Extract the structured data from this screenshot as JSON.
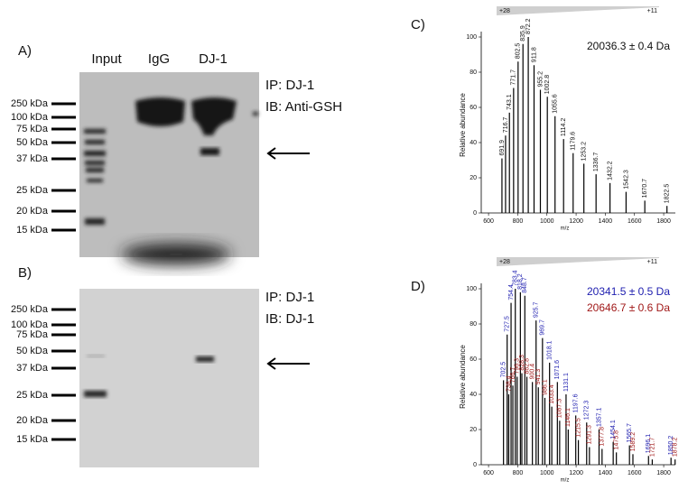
{
  "figure": {
    "blots": [
      {
        "panel": "A)",
        "lanes": [
          "Input",
          "IgG",
          "DJ-1"
        ],
        "markers": [
          "250 kDa",
          "100 kDa",
          "75 kDa",
          "50 kDa",
          "37 kDa",
          "25 kDa",
          "20 kDa",
          "15 kDa"
        ],
        "labels": [
          "IP: DJ-1",
          "IB: Anti-GSH"
        ]
      },
      {
        "panel": "B)",
        "markers": [
          "250 kDa",
          "100 kDa",
          "75 kDa",
          "50 kDa",
          "37 kDa",
          "25 kDa",
          "20 kDa",
          "15 kDa"
        ],
        "labels": [
          "IP: DJ-1",
          "IB: DJ-1"
        ]
      }
    ]
  },
  "chart_data": [
    {
      "type": "stem",
      "panel": "C)",
      "charge_states": [
        "+28",
        "+11"
      ],
      "xlabel": "m/z",
      "ylabel": "Relative abundance",
      "xlim": [
        550,
        1880
      ],
      "ylim": [
        0,
        100
      ],
      "xticks": [
        600,
        800,
        1000,
        1200,
        1400,
        1600,
        1800
      ],
      "yticks": [
        0,
        20,
        40,
        60,
        80,
        100
      ],
      "series": [
        {
          "name": "20036.3 ± 0.4 Da",
          "color": "#111111",
          "x": [
            691.9,
            716.7,
            743.1,
            771.7,
            802.5,
            835.9,
            872.2,
            911.8,
            955.2,
            1002.8,
            1055.6,
            1114.2,
            1179.6,
            1253.2,
            1336.7,
            1432.2,
            1542.3,
            1670.7,
            1822.5
          ],
          "values": [
            31,
            44,
            57,
            71,
            86,
            96,
            100,
            84,
            70,
            66,
            55,
            42,
            34,
            28,
            22,
            17,
            12,
            7,
            4
          ]
        }
      ]
    },
    {
      "type": "stem",
      "panel": "D)",
      "charge_states": [
        "+28",
        "+11"
      ],
      "xlabel": "m/z",
      "ylabel": "Relative abundance",
      "xlim": [
        550,
        1880
      ],
      "ylim": [
        0,
        100
      ],
      "xticks": [
        600,
        800,
        1000,
        1200,
        1400,
        1600,
        1800
      ],
      "yticks": [
        0,
        20,
        40,
        60,
        80,
        100
      ],
      "series": [
        {
          "name": "20341.5 ± 0.5 Da",
          "color": "#2020b0",
          "x": [
            702.5,
            727.5,
            754.4,
            783.4,
            818.2,
            848.7,
            925.7,
            969.7,
            1018.1,
            1071.6,
            1131.1,
            1197.6,
            1272.3,
            1357.1,
            1454.1,
            1565.7,
            1696.1,
            1850.2
          ],
          "values": [
            48,
            74,
            92,
            100,
            98,
            96,
            82,
            72,
            58,
            47,
            40,
            28,
            24,
            20,
            13,
            11,
            5,
            4
          ]
        },
        {
          "name": "20646.7 ± 0.6 Da",
          "color": "#a01818",
          "x": [
            738.4,
            766.7,
            796.3,
            828.3,
            862.8,
            900.4,
            941.3,
            986.1,
            1033.4,
            1087.3,
            1146.1,
            1215.5,
            1291.3,
            1377.8,
            1475.8,
            1589.2,
            1721.7,
            1878.2
          ],
          "values": [
            40,
            45,
            50,
            52,
            50,
            47,
            44,
            38,
            33,
            25,
            20,
            14,
            10,
            9,
            7,
            6,
            3,
            3
          ]
        }
      ]
    }
  ]
}
